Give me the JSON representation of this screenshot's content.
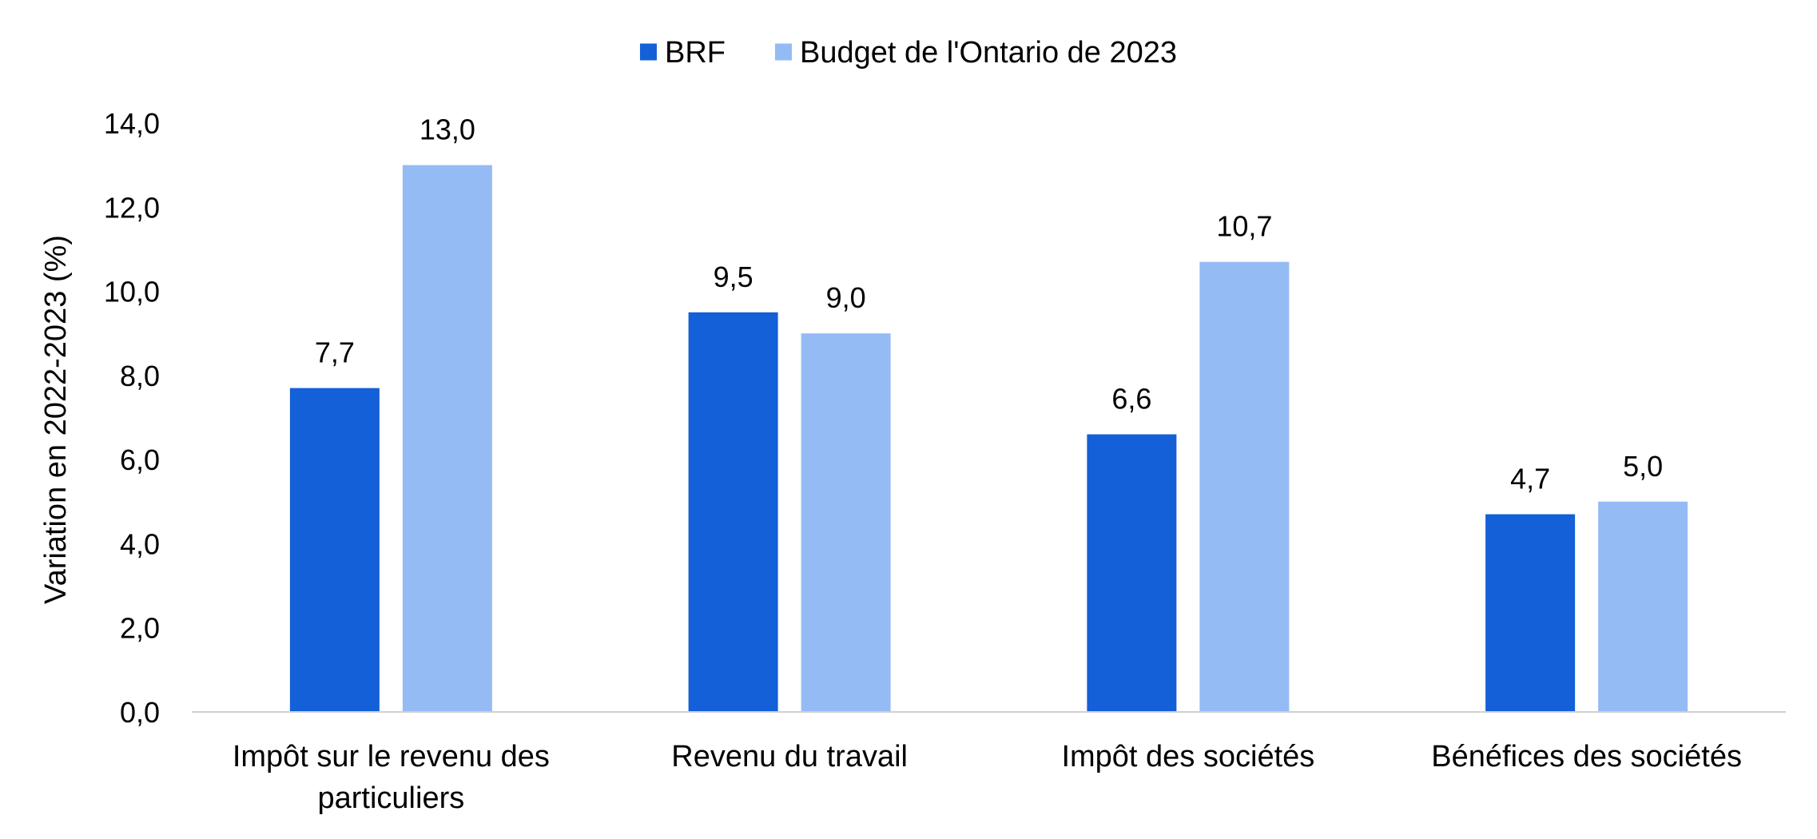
{
  "chart_data": {
    "type": "bar",
    "title": "",
    "xlabel": "",
    "ylabel": "Variation en 2022-2023 (%)",
    "ylim": [
      0,
      14
    ],
    "yticks": [
      0,
      2,
      4,
      6,
      8,
      10,
      12,
      14
    ],
    "ytick_labels": [
      "0,0",
      "2,0",
      "4,0",
      "6,0",
      "8,0",
      "10,0",
      "12,0",
      "14,0"
    ],
    "grid": false,
    "legend_position": "top",
    "categories": [
      [
        "Impôt sur le revenu des",
        "particuliers"
      ],
      [
        "Revenu du travail"
      ],
      [
        "Impôt des sociétés"
      ],
      [
        "Bénéfices des sociétés"
      ]
    ],
    "series": [
      {
        "name": "BRF",
        "color": "#1360d8",
        "values": [
          7.7,
          9.5,
          6.6,
          4.7
        ],
        "labels": [
          "7,7",
          "9,5",
          "6,6",
          "4,7"
        ]
      },
      {
        "name": "Budget de l'Ontario de 2023",
        "color": "#95bbf5",
        "values": [
          13.0,
          9.0,
          10.7,
          5.0
        ],
        "labels": [
          "13,0",
          "9,0",
          "10,7",
          "5,0"
        ]
      }
    ],
    "axis_color": "#d0d0d0"
  }
}
